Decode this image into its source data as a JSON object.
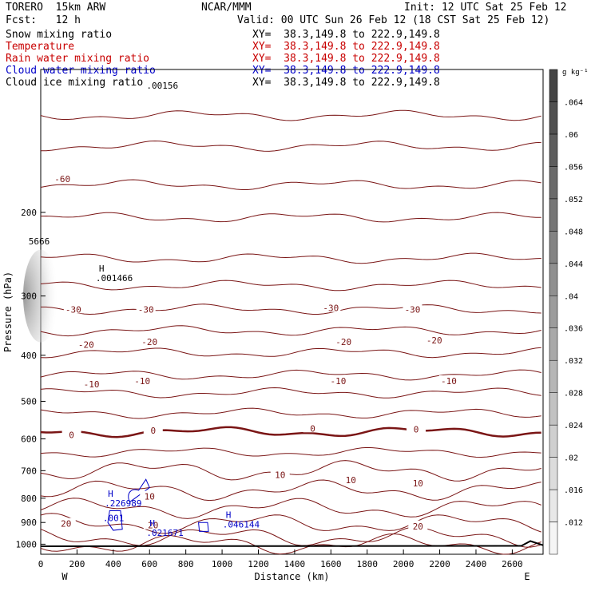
{
  "header": {
    "model": "TORERO  15km ARW",
    "center": "NCAR/MMM",
    "init": "Init: 12 UTC Sat 25 Feb 12",
    "fcst": "Fcst:   12 h",
    "valid": "Valid: 00 UTC Sun 26 Feb 12 (18 CST Sat 25 Feb 12)"
  },
  "fields": [
    {
      "name": "Snow mixing ratio",
      "xy": "",
      "color": "#000000"
    },
    {
      "name": "Temperature",
      "xy": "XY=  38.3,149.8 to 222.9,149.8",
      "color": "#c80000"
    },
    {
      "name": "Rain water mixing ratio",
      "xy": "XY=  38.3,149.8 to 222.9,149.8",
      "color": "#c80000"
    },
    {
      "name": "Cloud water mixing ratio",
      "xy": "XY=  38.3,149.8 to 222.9,149.8",
      "color": "#0000c8"
    },
    {
      "name": "Cloud ice mixing ratio",
      "xy": "XY=  38.3,149.8 to 222.9,149.8",
      "color": "#000000"
    }
  ],
  "first_xy": "XY=  38.3,149.8 to 222.9,149.8",
  "chart_data": {
    "type": "contour-cross-section",
    "xlabel": "Distance (km)",
    "ylabel": "Pressure (hPa)",
    "x_end_left": "W",
    "x_end_right": "E",
    "xlim": [
      0,
      2770
    ],
    "ylim": [
      1050,
      100
    ],
    "y_scale": "log",
    "x_ticks": [
      0,
      200,
      400,
      600,
      800,
      1000,
      1200,
      1400,
      1600,
      1800,
      2000,
      2200,
      2400,
      2600
    ],
    "y_ticks": [
      200,
      300,
      400,
      500,
      600,
      700,
      800,
      900,
      1000
    ],
    "colorbar": {
      "unit": "g kg⁻¹",
      "ticks": [
        ".012",
        ".016",
        ".02",
        ".024",
        ".028",
        ".032",
        ".036",
        ".04",
        ".044",
        ".048",
        ".052",
        ".056",
        ".06",
        ".064"
      ]
    },
    "temperature_labels": [
      {
        "text": "-60",
        "x": 120,
        "p": 170
      },
      {
        "text": "-30",
        "x": 180,
        "p": 320
      },
      {
        "text": "-30",
        "x": 580,
        "p": 320
      },
      {
        "text": "-30",
        "x": 1600,
        "p": 318
      },
      {
        "text": "-30",
        "x": 2050,
        "p": 320
      },
      {
        "text": "-20",
        "x": 250,
        "p": 380
      },
      {
        "text": "-20",
        "x": 600,
        "p": 375
      },
      {
        "text": "-20",
        "x": 1670,
        "p": 375
      },
      {
        "text": "-20",
        "x": 2170,
        "p": 372
      },
      {
        "text": "-10",
        "x": 280,
        "p": 460
      },
      {
        "text": "-10",
        "x": 560,
        "p": 453
      },
      {
        "text": "-10",
        "x": 1640,
        "p": 453
      },
      {
        "text": "-10",
        "x": 2250,
        "p": 453
      },
      {
        "text": "0",
        "x": 170,
        "p": 588
      },
      {
        "text": "0",
        "x": 620,
        "p": 576
      },
      {
        "text": "0",
        "x": 1500,
        "p": 570
      },
      {
        "text": "0",
        "x": 2070,
        "p": 573
      },
      {
        "text": "10",
        "x": 1320,
        "p": 714
      },
      {
        "text": "10",
        "x": 1710,
        "p": 732
      },
      {
        "text": "10",
        "x": 2080,
        "p": 744
      },
      {
        "text": "10",
        "x": 600,
        "p": 793
      },
      {
        "text": "20",
        "x": 140,
        "p": 905
      },
      {
        "text": "20",
        "x": 620,
        "p": 912
      },
      {
        "text": "20",
        "x": 2080,
        "p": 916
      }
    ],
    "extrema": [
      {
        "mark": "H",
        "value": ".001466",
        "x": 400,
        "p": 275,
        "color": "#000000"
      },
      {
        "mark": "H",
        "value": ".226989",
        "x": 450,
        "p": 820,
        "color": "#0000c8"
      },
      {
        "mark": "",
        "value": ".001",
        "x": 440,
        "p": 880,
        "color": "#0000c8"
      },
      {
        "mark": "H",
        "value": ".046144",
        "x": 1100,
        "p": 908,
        "color": "#0000c8"
      },
      {
        "mark": "H",
        "value": ".021671",
        "x": 680,
        "p": 945,
        "color": "#0000c8"
      },
      {
        "mark": "",
        "value": ".00156",
        "x": 680,
        "p": 108,
        "color": "#000000"
      },
      {
        "mark": "",
        "value": "5666",
        "x": 30,
        "p": 230,
        "color": "#000000"
      }
    ]
  }
}
